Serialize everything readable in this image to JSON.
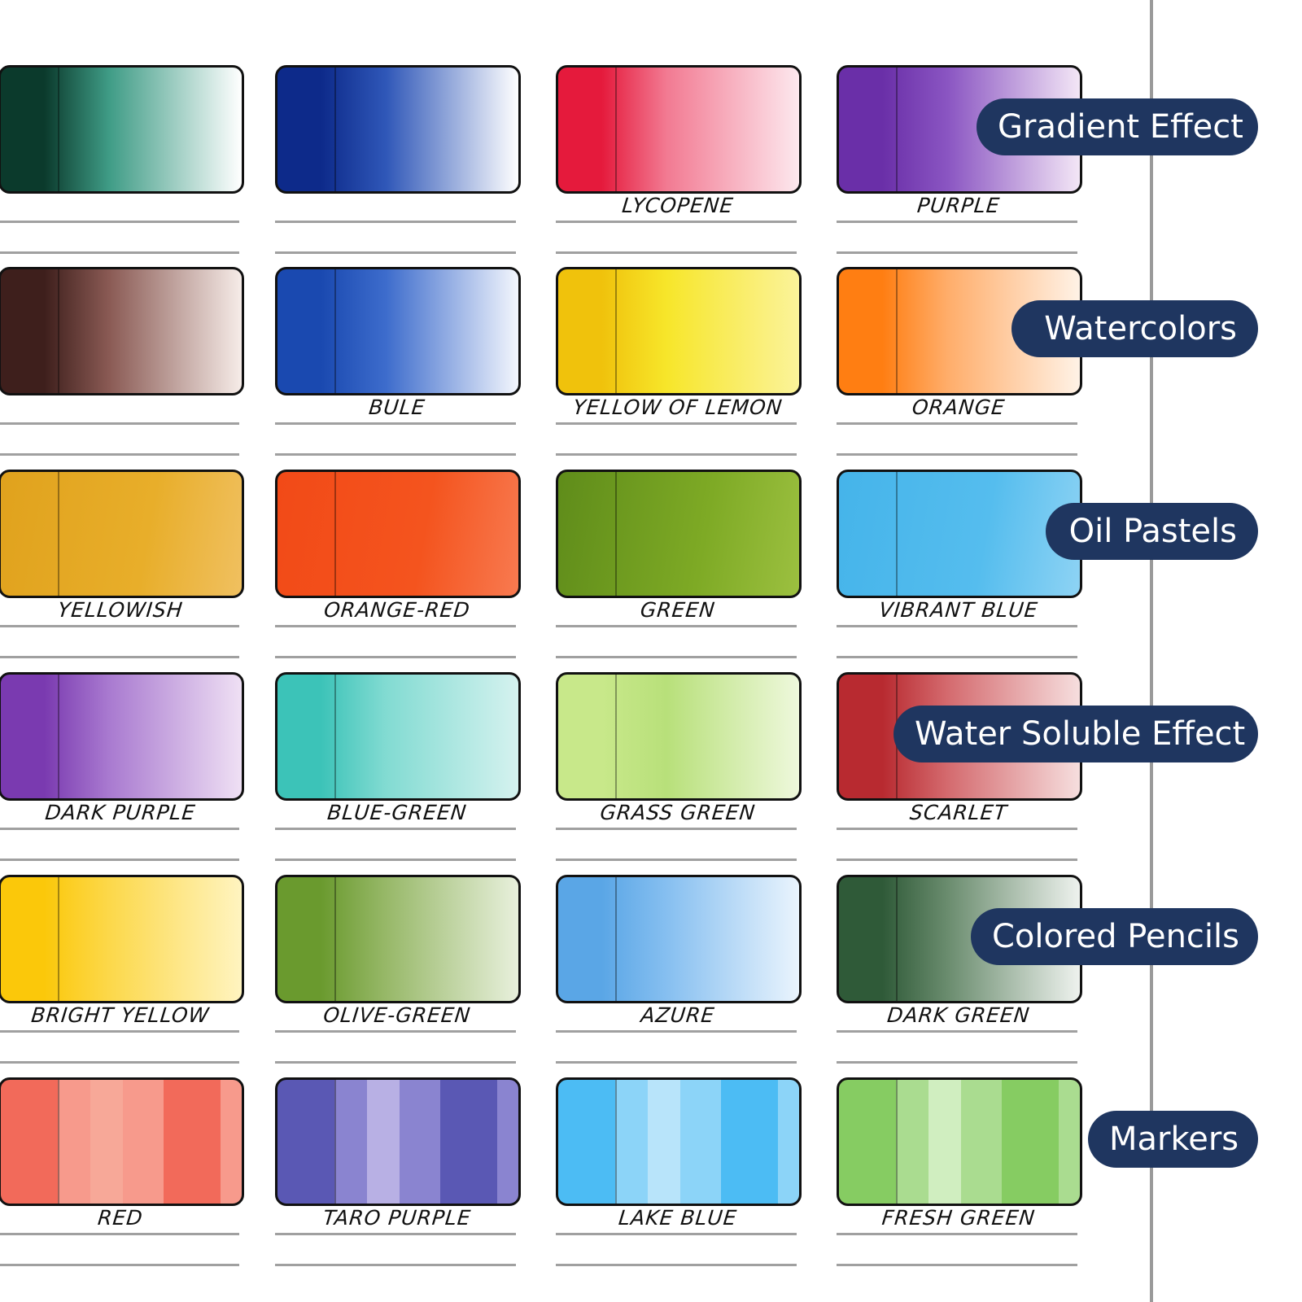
{
  "rows": [
    {
      "technique": "Gradient Effect",
      "swatches": [
        {
          "label": "",
          "colors": [
            "#0b3a2c",
            "#3f9c86",
            "#ffffff"
          ]
        },
        {
          "label": "",
          "colors": [
            "#0d2a8a",
            "#2f57b8",
            "#ffffff"
          ]
        },
        {
          "label": "LYCOPENE",
          "colors": [
            "#e51a3c",
            "#f27a92",
            "#fde8ee"
          ]
        },
        {
          "label": "PURPLE",
          "colors": [
            "#6a2fa8",
            "#8a55c2",
            "#f3e6f6"
          ]
        }
      ]
    },
    {
      "technique": "Watercolors",
      "swatches": [
        {
          "label": "",
          "colors": [
            "#3e1f1c",
            "#8a5a54",
            "#f6ece8"
          ]
        },
        {
          "label": "BULE",
          "colors": [
            "#1a49b0",
            "#3d6ccc",
            "#f3f6fd"
          ]
        },
        {
          "label": "YELLOW OF LEMON",
          "colors": [
            "#f0c20c",
            "#f7e62a",
            "#fbf39a"
          ]
        },
        {
          "label": "ORANGE",
          "colors": [
            "#ff7e12",
            "#ffad6a",
            "#fff2e6"
          ]
        }
      ]
    },
    {
      "technique": "Oil Pastels",
      "swatches": [
        {
          "label": "YELLOWISH",
          "colors": [
            "#e0a21d",
            "#e8ae2a",
            "#f0c060"
          ]
        },
        {
          "label": "ORANGE-RED",
          "colors": [
            "#f24a17",
            "#f4541e",
            "#f87a50"
          ]
        },
        {
          "label": "GREEN",
          "colors": [
            "#5f8c1a",
            "#7eaa25",
            "#9cc040"
          ]
        },
        {
          "label": "VIBRANT BLUE",
          "colors": [
            "#45b4ea",
            "#55bdee",
            "#8ed3f4"
          ]
        }
      ]
    },
    {
      "technique": "Water Soluble Effect",
      "swatches": [
        {
          "label": "DARK PURPLE",
          "colors": [
            "#7a3ab0",
            "#a97ad0",
            "#efe0f4"
          ]
        },
        {
          "label": "BLUE-GREEN",
          "colors": [
            "#3cc3b8",
            "#82dbd2",
            "#d5f2ef"
          ]
        },
        {
          "label": "GRASS GREEN",
          "colors": [
            "#c8e88a",
            "#b8e07a",
            "#eef8dc"
          ]
        },
        {
          "label": "SCARLET",
          "colors": [
            "#b82a30",
            "#d46a6e",
            "#f6dede"
          ]
        }
      ]
    },
    {
      "technique": "Colored Pencils",
      "swatches": [
        {
          "label": "BRIGHT YELLOW",
          "colors": [
            "#fbc80a",
            "#fcd84a",
            "#fff4c0"
          ]
        },
        {
          "label": "OLIVE-GREEN",
          "colors": [
            "#6a9a2e",
            "#97b868",
            "#e8f0dc"
          ]
        },
        {
          "label": "AZURE",
          "colors": [
            "#5aa6e6",
            "#86bff0",
            "#eaf4fd"
          ]
        },
        {
          "label": "DARK GREEN",
          "colors": [
            "#2f5a38",
            "#6a8c6e",
            "#eef2ee"
          ]
        }
      ]
    },
    {
      "technique": "Markers",
      "swatches": [
        {
          "label": "RED",
          "colors": [
            "#f26a5a",
            "#f79a8c",
            "#f7a898"
          ]
        },
        {
          "label": "TARO PURPLE",
          "colors": [
            "#5a58b4",
            "#8a84d0",
            "#b8b0e4"
          ]
        },
        {
          "label": "LAKE BLUE",
          "colors": [
            "#4cbcf4",
            "#8cd4f8",
            "#b8e4fa"
          ]
        },
        {
          "label": "FRESH GREEN",
          "colors": [
            "#86cc62",
            "#aadc90",
            "#d0eec0"
          ]
        }
      ]
    }
  ],
  "pill_color": "#1f3660"
}
